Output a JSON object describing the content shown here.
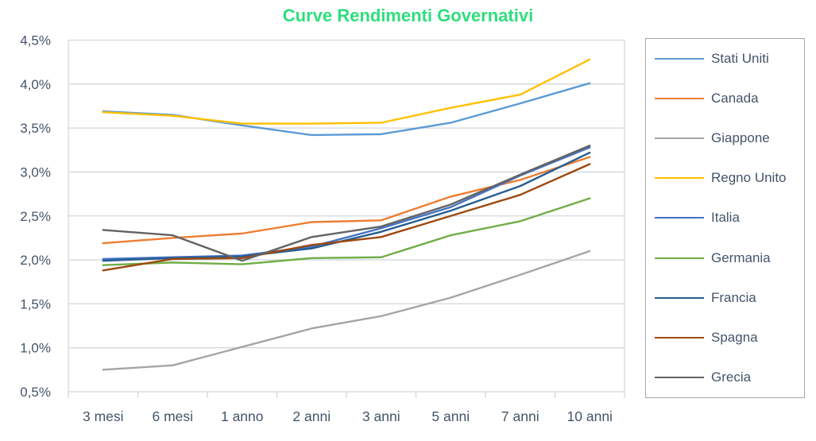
{
  "chart_data": {
    "type": "line",
    "title": "Curve Rendimenti Governativi",
    "title_color": "#2EDE7D",
    "categories": [
      "3 mesi",
      "6 mesi",
      "1 anno",
      "2 anni",
      "3 anni",
      "5 anni",
      "7 anni",
      "10 anni"
    ],
    "y_tick_labels": [
      "4,5%",
      "4,0%",
      "3,5%",
      "3,0%",
      "2,5%",
      "2,0%",
      "1,5%",
      "1,0%",
      "0,5%"
    ],
    "ylim": [
      0.5,
      4.5
    ],
    "y_step": 0.5,
    "grid": "horizontal",
    "legend_position": "right",
    "axis_text_color": "#44546A",
    "grid_color": "#D2D7DD",
    "legend_border_color": "#A6A6A6",
    "series": [
      {
        "name": "Stati Uniti",
        "color": "#5B9BD5",
        "values": [
          3.69,
          3.65,
          3.53,
          3.42,
          3.43,
          3.56,
          3.78,
          4.01
        ]
      },
      {
        "name": "Canada",
        "color": "#ED7D31",
        "values": [
          2.19,
          2.25,
          2.3,
          2.43,
          2.45,
          2.72,
          2.91,
          3.17
        ]
      },
      {
        "name": "Giappone",
        "color": "#A5A5A5",
        "values": [
          0.75,
          0.8,
          1.01,
          1.22,
          1.36,
          1.57,
          1.83,
          2.1
        ]
      },
      {
        "name": "Regno Unito",
        "color": "#FFC000",
        "values": [
          3.68,
          3.64,
          3.55,
          3.55,
          3.56,
          3.73,
          3.88,
          4.28
        ]
      },
      {
        "name": "Italia",
        "color": "#4472C4",
        "values": [
          2.01,
          2.03,
          2.05,
          2.15,
          2.36,
          2.6,
          2.96,
          3.28
        ]
      },
      {
        "name": "Germania",
        "color": "#70AD47",
        "values": [
          1.94,
          1.97,
          1.95,
          2.02,
          2.03,
          2.28,
          2.44,
          2.7
        ]
      },
      {
        "name": "Francia",
        "color": "#255E91",
        "values": [
          1.99,
          2.02,
          2.04,
          2.13,
          2.32,
          2.56,
          2.84,
          3.22
        ]
      },
      {
        "name": "Spagna",
        "color": "#9E480E",
        "values": [
          1.88,
          2.01,
          2.02,
          2.17,
          2.26,
          2.5,
          2.74,
          3.09
        ]
      },
      {
        "name": "Grecia",
        "color": "#636363",
        "values": [
          2.34,
          2.28,
          1.99,
          2.26,
          2.38,
          2.63,
          2.97,
          3.3
        ]
      }
    ]
  }
}
